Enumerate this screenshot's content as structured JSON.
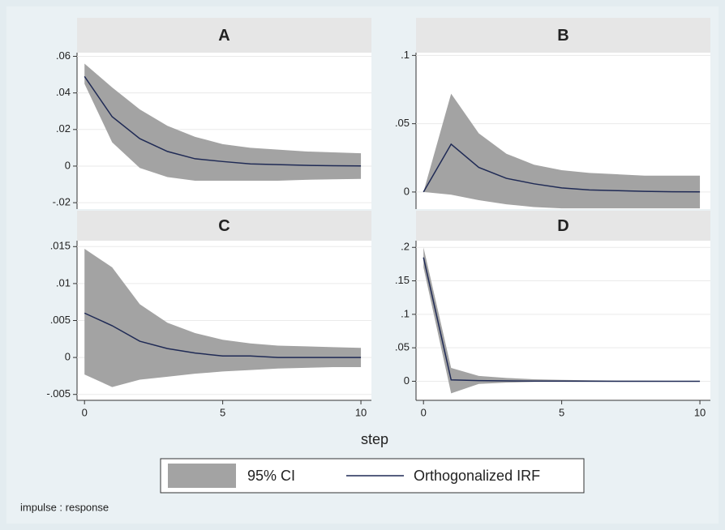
{
  "chart_data": [
    {
      "type": "line",
      "title": "A",
      "x": [
        0,
        1,
        2,
        3,
        4,
        5,
        6,
        7,
        8,
        9,
        10
      ],
      "xlim": [
        -0.27,
        10.38
      ],
      "ylim": [
        -0.0235,
        0.062
      ],
      "yticks": [
        {
          "value": -0.02,
          "label": "-.02"
        },
        0,
        {
          "value": 0.02,
          "label": ".02"
        },
        {
          "value": 0.04,
          "label": ".04"
        },
        {
          "value": 0.06,
          "label": ".06"
        }
      ],
      "grid": true,
      "band": {
        "name": "95% CI",
        "color": "#a3a3a3",
        "upper": [
          0.056,
          0.043,
          0.031,
          0.022,
          0.016,
          0.012,
          0.01,
          0.009,
          0.008,
          0.0075,
          0.007
        ],
        "lower": [
          0.045,
          0.013,
          -0.001,
          -0.006,
          -0.008,
          -0.008,
          -0.008,
          -0.008,
          -0.0075,
          -0.0072,
          -0.007
        ]
      },
      "series": [
        {
          "name": "Orthogonalized IRF",
          "color": "#1f2a55",
          "values": [
            0.049,
            0.027,
            0.015,
            0.008,
            0.004,
            0.0025,
            0.0012,
            0.0008,
            0.0004,
            0.0002,
            0.0001
          ]
        }
      ]
    },
    {
      "type": "line",
      "title": "B",
      "x": [
        0,
        1,
        2,
        3,
        4,
        5,
        6,
        7,
        8,
        9,
        10
      ],
      "xlim": [
        -0.27,
        10.38
      ],
      "ylim": [
        -0.0125,
        0.102
      ],
      "yticks": [
        0,
        {
          "value": 0.05,
          "label": ".05"
        },
        {
          "value": 0.1,
          "label": ".1"
        }
      ],
      "grid": true,
      "band": {
        "name": "95% CI",
        "color": "#a3a3a3",
        "upper": [
          0,
          0.072,
          0.043,
          0.028,
          0.02,
          0.016,
          0.014,
          0.013,
          0.012,
          0.012,
          0.012
        ],
        "lower": [
          0,
          -0.002,
          -0.006,
          -0.009,
          -0.011,
          -0.012,
          -0.012,
          -0.012,
          -0.012,
          -0.012,
          -0.012
        ]
      },
      "series": [
        {
          "name": "Orthogonalized IRF",
          "color": "#1f2a55",
          "values": [
            0,
            0.035,
            0.018,
            0.01,
            0.006,
            0.003,
            0.0015,
            0.001,
            0.0005,
            0.0002,
            0.0001
          ]
        }
      ]
    },
    {
      "type": "line",
      "title": "C",
      "x": [
        0,
        1,
        2,
        3,
        4,
        5,
        6,
        7,
        8,
        9,
        10
      ],
      "xlim": [
        -0.27,
        10.38
      ],
      "ylim": [
        -0.0058,
        0.0158
      ],
      "xticks": [
        0,
        5,
        10
      ],
      "yticks": [
        {
          "value": -0.005,
          "label": "-.005"
        },
        0,
        {
          "value": 0.005,
          "label": ".005"
        },
        {
          "value": 0.01,
          "label": ".01"
        },
        {
          "value": 0.015,
          "label": ".015"
        }
      ],
      "grid": true,
      "band": {
        "name": "95% CI",
        "color": "#a3a3a3",
        "upper": [
          0.0147,
          0.0122,
          0.0072,
          0.0047,
          0.0033,
          0.0024,
          0.0019,
          0.0016,
          0.0015,
          0.0014,
          0.0013
        ],
        "lower": [
          -0.0023,
          -0.004,
          -0.003,
          -0.0026,
          -0.0022,
          -0.0019,
          -0.0017,
          -0.0015,
          -0.0014,
          -0.0013,
          -0.0013
        ]
      },
      "series": [
        {
          "name": "Orthogonalized IRF",
          "color": "#1f2a55",
          "values": [
            0.006,
            0.0043,
            0.0022,
            0.0012,
            0.0006,
            0.0002,
            0.0002,
            0,
            0,
            0,
            0
          ]
        }
      ]
    },
    {
      "type": "line",
      "title": "D",
      "x": [
        0,
        1,
        2,
        3,
        4,
        5,
        6,
        7,
        8,
        9,
        10
      ],
      "xlim": [
        -0.27,
        10.38
      ],
      "ylim": [
        -0.0285,
        0.21
      ],
      "xticks": [
        0,
        5,
        10
      ],
      "yticks": [
        0,
        {
          "value": 0.05,
          "label": ".05"
        },
        {
          "value": 0.1,
          "label": ".1"
        },
        {
          "value": 0.15,
          "label": ".15"
        },
        {
          "value": 0.2,
          "label": ".2"
        }
      ],
      "grid": true,
      "band": {
        "name": "95% CI",
        "color": "#a3a3a3",
        "upper": [
          0.2,
          0.02,
          0.008,
          0.005,
          0.003,
          0.002,
          0.0015,
          0.001,
          0.0008,
          0.0005,
          0.0004
        ],
        "lower": [
          0.17,
          -0.018,
          -0.004,
          -0.002,
          -0.001,
          -0.001,
          -0.0008,
          -0.0006,
          -0.0004,
          -0.0003,
          -0.0002
        ]
      },
      "series": [
        {
          "name": "Orthogonalized IRF",
          "color": "#1f2a55",
          "values": [
            0.185,
            0.002,
            0.001,
            0.0005,
            0.0003,
            0.0002,
            0.0001,
            0,
            0,
            0,
            0
          ]
        }
      ]
    }
  ],
  "xlabel": "step",
  "note": "impulse : response"
}
